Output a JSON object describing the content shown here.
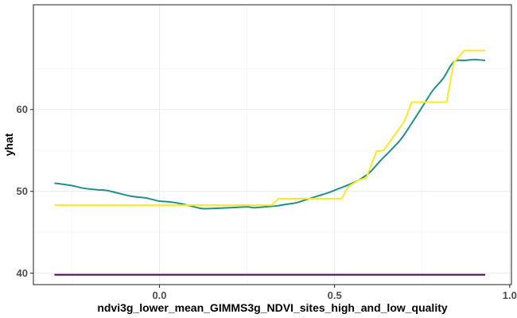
{
  "chart_data": {
    "type": "line",
    "xlabel": "ndvi3g_lower_mean_GIMMS3g_NDVI_sites_high_and_low_quality",
    "ylabel": "yhat",
    "xlim": [
      -0.36,
      1.005
    ],
    "ylim": [
      38.6,
      72.8
    ],
    "x_ticks": [
      0.0,
      0.5,
      1.0
    ],
    "x_tick_labels": [
      "0.0",
      "0.5",
      "1.0"
    ],
    "y_ticks": [
      40,
      50,
      60
    ],
    "y_tick_labels": [
      "40",
      "50",
      "60"
    ],
    "grid": true,
    "legend": "none",
    "series": [
      {
        "color": "#21908C",
        "line_shape": "smooth",
        "x": [
          -0.3,
          -0.25,
          -0.22,
          -0.18,
          -0.15,
          -0.12,
          -0.08,
          -0.04,
          -0.02,
          0.0,
          0.03,
          0.06,
          0.09,
          0.12,
          0.15,
          0.2,
          0.25,
          0.27,
          0.3,
          0.33,
          0.36,
          0.39,
          0.42,
          0.45,
          0.48,
          0.51,
          0.54,
          0.57,
          0.6,
          0.63,
          0.66,
          0.69,
          0.72,
          0.75,
          0.78,
          0.81,
          0.84,
          0.87,
          0.9,
          0.93
        ],
        "y": [
          51.0,
          50.7,
          50.4,
          50.2,
          50.1,
          49.8,
          49.4,
          49.2,
          49.0,
          48.8,
          48.7,
          48.5,
          48.2,
          47.9,
          47.9,
          48.0,
          48.1,
          48.0,
          48.1,
          48.2,
          48.4,
          48.6,
          49.0,
          49.4,
          49.8,
          50.3,
          50.8,
          51.4,
          52.3,
          53.7,
          55.0,
          56.4,
          58.3,
          60.3,
          62.3,
          63.8,
          65.8,
          66.0,
          66.1,
          66.0
        ]
      },
      {
        "color": "#FDE725",
        "line_shape": "step",
        "x": [
          -0.3,
          0.0,
          0.32,
          0.34,
          0.52,
          0.54,
          0.57,
          0.59,
          0.62,
          0.64,
          0.7,
          0.72,
          0.82,
          0.84,
          0.87,
          0.93
        ],
        "y": [
          48.3,
          48.3,
          48.3,
          49.1,
          49.1,
          50.6,
          51.4,
          51.6,
          54.9,
          55.0,
          58.6,
          60.9,
          60.9,
          65.7,
          67.2,
          67.2
        ]
      },
      {
        "color": "#440154",
        "line_shape": "linear",
        "x": [
          -0.3,
          0.93
        ],
        "y": [
          39.8,
          39.8
        ]
      }
    ]
  }
}
